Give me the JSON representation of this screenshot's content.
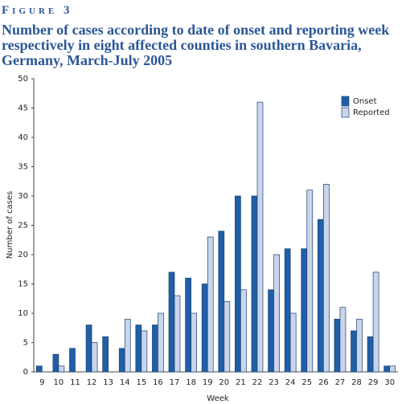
{
  "figure_label": "Figure 3",
  "chart_data": {
    "type": "bar",
    "title": "Number of cases according to date of onset and reporting week respectively in eight affected counties in southern Bavaria, Germany, March-July 2005",
    "x_label": "Week",
    "y_label": "Number of cases",
    "categories": [
      "9",
      "10",
      "11",
      "12",
      "13",
      "14",
      "15",
      "16",
      "17",
      "18",
      "19",
      "20",
      "21",
      "22",
      "23",
      "24",
      "25",
      "26",
      "27",
      "28",
      "29",
      "30"
    ],
    "series": [
      {
        "name": "Onset",
        "color": "#1f5fa8",
        "values": [
          1,
          3,
          4,
          8,
          6,
          4,
          8,
          8,
          17,
          16,
          15,
          24,
          30,
          30,
          14,
          21,
          21,
          26,
          9,
          7,
          6,
          1
        ]
      },
      {
        "name": "Reported",
        "color": "#c9d5eb",
        "values": [
          0,
          1,
          0,
          5,
          0,
          9,
          7,
          10,
          13,
          10,
          23,
          12,
          14,
          46,
          20,
          10,
          31,
          32,
          11,
          9,
          17,
          1
        ]
      }
    ],
    "ylim": [
      0,
      50
    ],
    "yticks": [
      0,
      5,
      10,
      15,
      20,
      25,
      30,
      35,
      40,
      45,
      50
    ],
    "grid": false,
    "legend": "top-right"
  }
}
